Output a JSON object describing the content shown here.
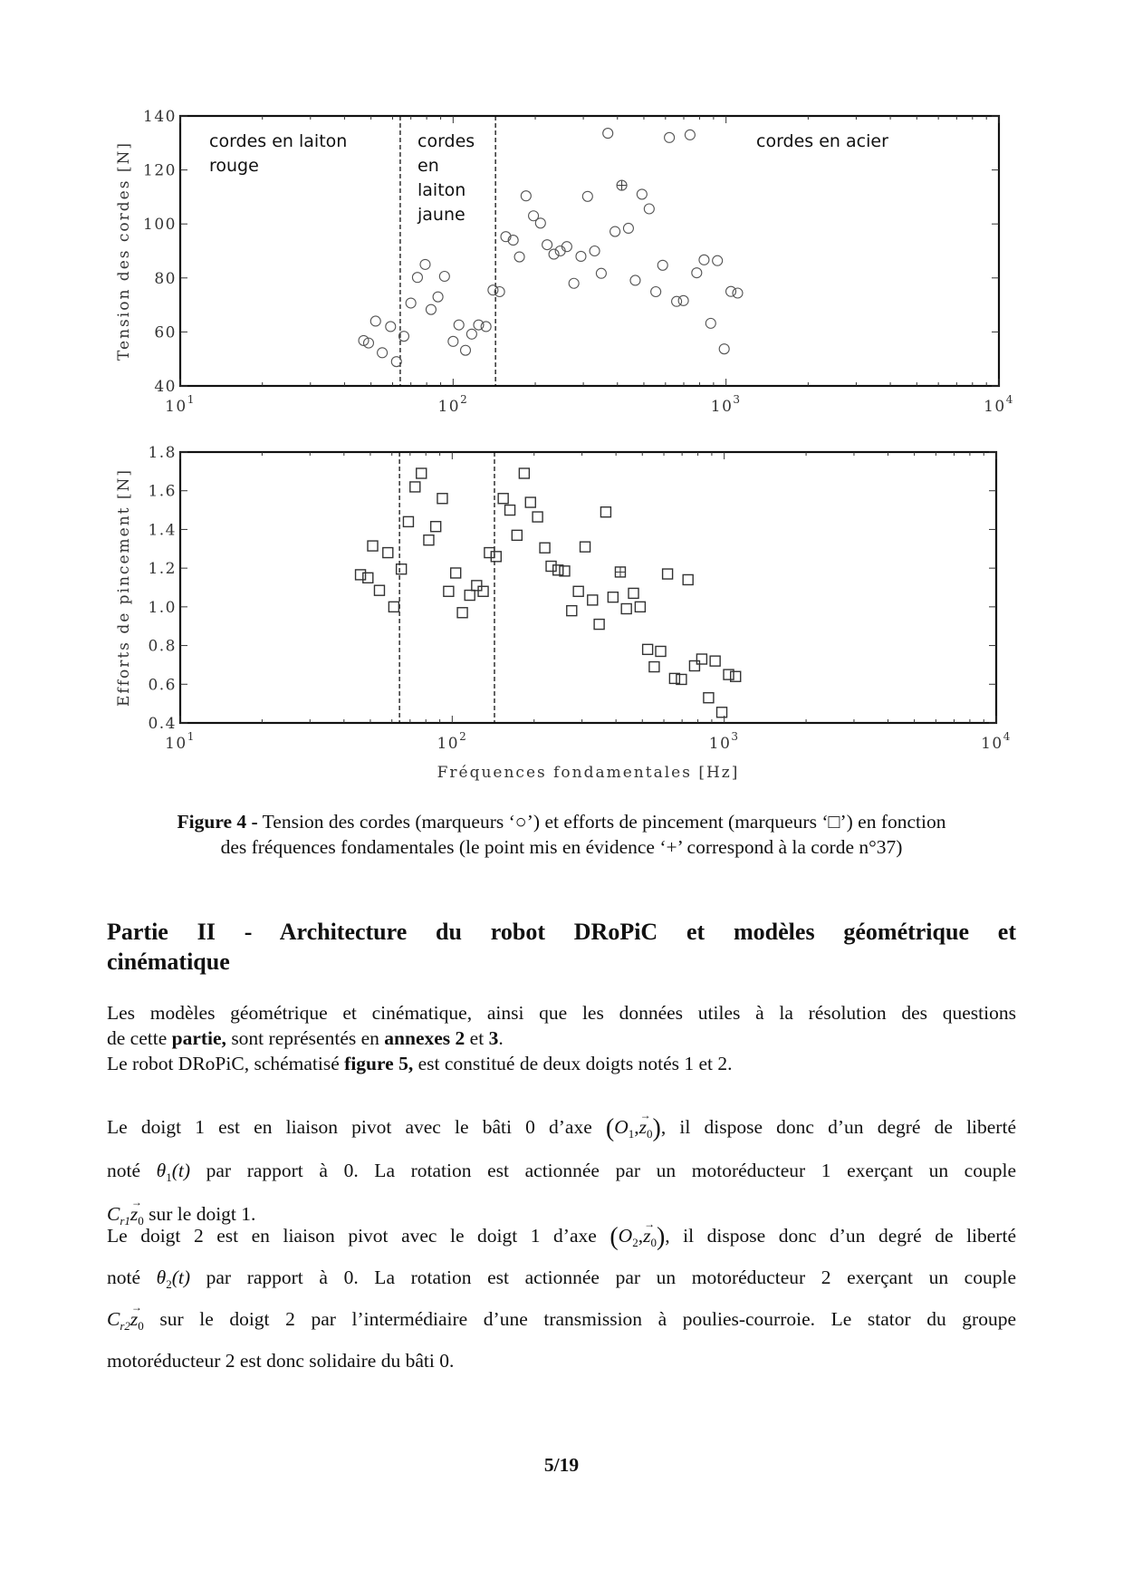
{
  "chart_data": [
    {
      "type": "scatter",
      "xscale": "log",
      "xlim": [
        10,
        10000
      ],
      "ylim": [
        40,
        140
      ],
      "ylabel": "Tension des cordes [N]",
      "xlabel": "",
      "xticks": [
        {
          "base": "10",
          "exp": "1",
          "value": 10
        },
        {
          "base": "10",
          "exp": "2",
          "value": 100
        },
        {
          "base": "10",
          "exp": "3",
          "value": 1000
        },
        {
          "base": "10",
          "exp": "4",
          "value": 10000
        }
      ],
      "yticks": [
        "40",
        "60",
        "80",
        "100",
        "120",
        "140"
      ],
      "ytick_values": [
        40,
        60,
        80,
        100,
        120,
        140
      ],
      "marker": "circle",
      "grid": false,
      "dashed_lines_x": [
        64,
        143
      ],
      "annotations": {
        "red_brass": [
          "cordes en laiton",
          "rouge"
        ],
        "yellow_brass": [
          "cordes",
          "en",
          "laiton",
          "jaune"
        ],
        "steel": [
          "cordes en acier"
        ]
      },
      "highlighted_index": 38,
      "x": [
        47,
        49,
        52,
        55,
        59,
        62,
        66,
        70,
        74,
        79,
        83,
        88,
        93,
        100,
        105,
        111,
        117,
        124,
        132,
        140,
        148,
        156,
        166,
        175,
        185,
        197,
        209,
        221,
        234,
        247,
        261,
        277,
        294,
        311,
        330,
        349,
        369,
        392,
        415,
        439,
        465,
        492,
        523,
        553,
        586,
        620,
        659,
        698,
        738,
        781,
        831,
        879,
        930,
        985,
        1042,
        1103
      ],
      "y": [
        56.8,
        55.9,
        64,
        52.3,
        62,
        49,
        58.4,
        70.7,
        80.2,
        85,
        68.3,
        73,
        80.6,
        56.5,
        62.6,
        53.2,
        59.2,
        62.6,
        62,
        75.5,
        74.9,
        95.3,
        94,
        87.8,
        110.4,
        103,
        100.3,
        92.3,
        88.8,
        90,
        91.6,
        78,
        88,
        110.2,
        90,
        81.7,
        133.6,
        97.2,
        114.3,
        98.4,
        79.1,
        111,
        105.6,
        74.9,
        84.7,
        132,
        71.3,
        71.6,
        133,
        81.9,
        86.7,
        63.2,
        86.4,
        53.7,
        75,
        74.4
      ]
    },
    {
      "type": "scatter",
      "xscale": "log",
      "xlim": [
        10,
        10000
      ],
      "ylim": [
        0.4,
        1.8
      ],
      "ylabel": "Efforts de pincement [N]",
      "xlabel": "Fréquences fondamentales [Hz]",
      "xticks": [
        {
          "base": "10",
          "exp": "1",
          "value": 10
        },
        {
          "base": "10",
          "exp": "2",
          "value": 100
        },
        {
          "base": "10",
          "exp": "3",
          "value": 1000
        },
        {
          "base": "10",
          "exp": "4",
          "value": 10000
        }
      ],
      "yticks": [
        "0.4",
        "0.6",
        "0.8",
        "1.0",
        "1.2",
        "1.4",
        "1.6",
        "1.8"
      ],
      "ytick_values": [
        0.4,
        0.6,
        0.8,
        1.0,
        1.2,
        1.4,
        1.6,
        1.8
      ],
      "marker": "square",
      "grid": false,
      "dashed_lines_x": [
        64,
        143
      ],
      "highlighted_index": 38,
      "x": [
        46,
        49,
        51,
        54,
        58,
        61,
        65,
        69,
        73,
        77,
        82,
        87,
        92,
        97,
        103,
        109,
        116,
        123,
        130,
        137,
        145,
        154,
        163,
        173,
        184,
        194,
        206,
        219,
        231,
        245,
        259,
        275,
        291,
        308,
        328,
        347,
        367,
        390,
        415,
        437,
        464,
        491,
        523,
        553,
        584,
        619,
        657,
        696,
        736,
        778,
        827,
        876,
        926,
        980,
        1038,
        1101
      ],
      "y": [
        1.166,
        1.15,
        1.315,
        1.085,
        1.28,
        1.0,
        1.195,
        1.44,
        1.62,
        1.69,
        1.345,
        1.415,
        1.56,
        1.08,
        1.175,
        0.97,
        1.06,
        1.11,
        1.08,
        1.28,
        1.26,
        1.56,
        1.5,
        1.37,
        1.69,
        1.54,
        1.465,
        1.305,
        1.21,
        1.19,
        1.185,
        0.98,
        1.08,
        1.31,
        1.035,
        0.91,
        1.49,
        1.05,
        1.18,
        0.99,
        1.07,
        1.0,
        0.78,
        0.69,
        0.77,
        1.17,
        0.63,
        0.625,
        1.14,
        0.695,
        0.73,
        0.53,
        0.72,
        0.455,
        0.65,
        0.64
      ]
    }
  ],
  "caption": {
    "label": "Figure 4 -",
    "line1": " Tension des cordes (marqueurs ‘○’) et efforts de pincement (marqueurs ‘□’) en fonction",
    "line2": "des fréquences fondamentales (le point mis en évidence ‘+’ correspond à la corde n°37)"
  },
  "heading": {
    "line1": "Partie II - Architecture du robot DRoPiC et modèles géométrique et",
    "line2": "cinématique"
  },
  "p1": {
    "l1": "Les modèles géométrique et cinématique, ainsi que les données utiles à la résolution des questions",
    "l2a": "de cette ",
    "l2b": "partie,",
    "l2c": " sont représentés en ",
    "l2d": "annexes 2",
    "l2e": " et ",
    "l2f": "3",
    "l2g": ".",
    "l3a": "Le robot DRoPiC, schématisé ",
    "l3b": "figure 5,",
    "l3c": " est constitué de deux doigts notés 1 et 2."
  },
  "p2": {
    "l1a": "Le doigt 1 est en liaison pivot avec le bâti 0 d’axe ",
    "O": "O",
    "Osub": "1",
    "z": "z",
    "zsub": "0",
    "l1b": ", il dispose donc d’un degré de liberté",
    "l2a": "noté ",
    "theta": "θ",
    "thetasub": "1",
    "t": "(t)",
    "l2b": " par rapport à 0. La rotation est actionnée par un motoréducteur 1 exerçant un couple",
    "C": "C",
    "Csub": "r1",
    "l3": " sur le doigt 1."
  },
  "p3": {
    "l1a": "Le doigt 2 est en liaison pivot avec le doigt 1 d’axe ",
    "O": "O",
    "Osub": "2",
    "z": "z",
    "zsub": "0",
    "l1b": ", il dispose donc d’un degré de liberté",
    "l2a": "noté ",
    "theta": "θ",
    "thetasub": "2",
    "t": "(t)",
    "l2b": " par rapport à 0. La rotation est actionnée par un motoréducteur 2 exerçant un couple",
    "C": "C",
    "Csub": "r2",
    "l3": " sur le doigt 2 par l’intermédiaire d’une transmission à poulies-courroie. Le stator du groupe",
    "l4": "motoréducteur 2 est donc solidaire du bâti 0."
  },
  "page_number": "5/19"
}
